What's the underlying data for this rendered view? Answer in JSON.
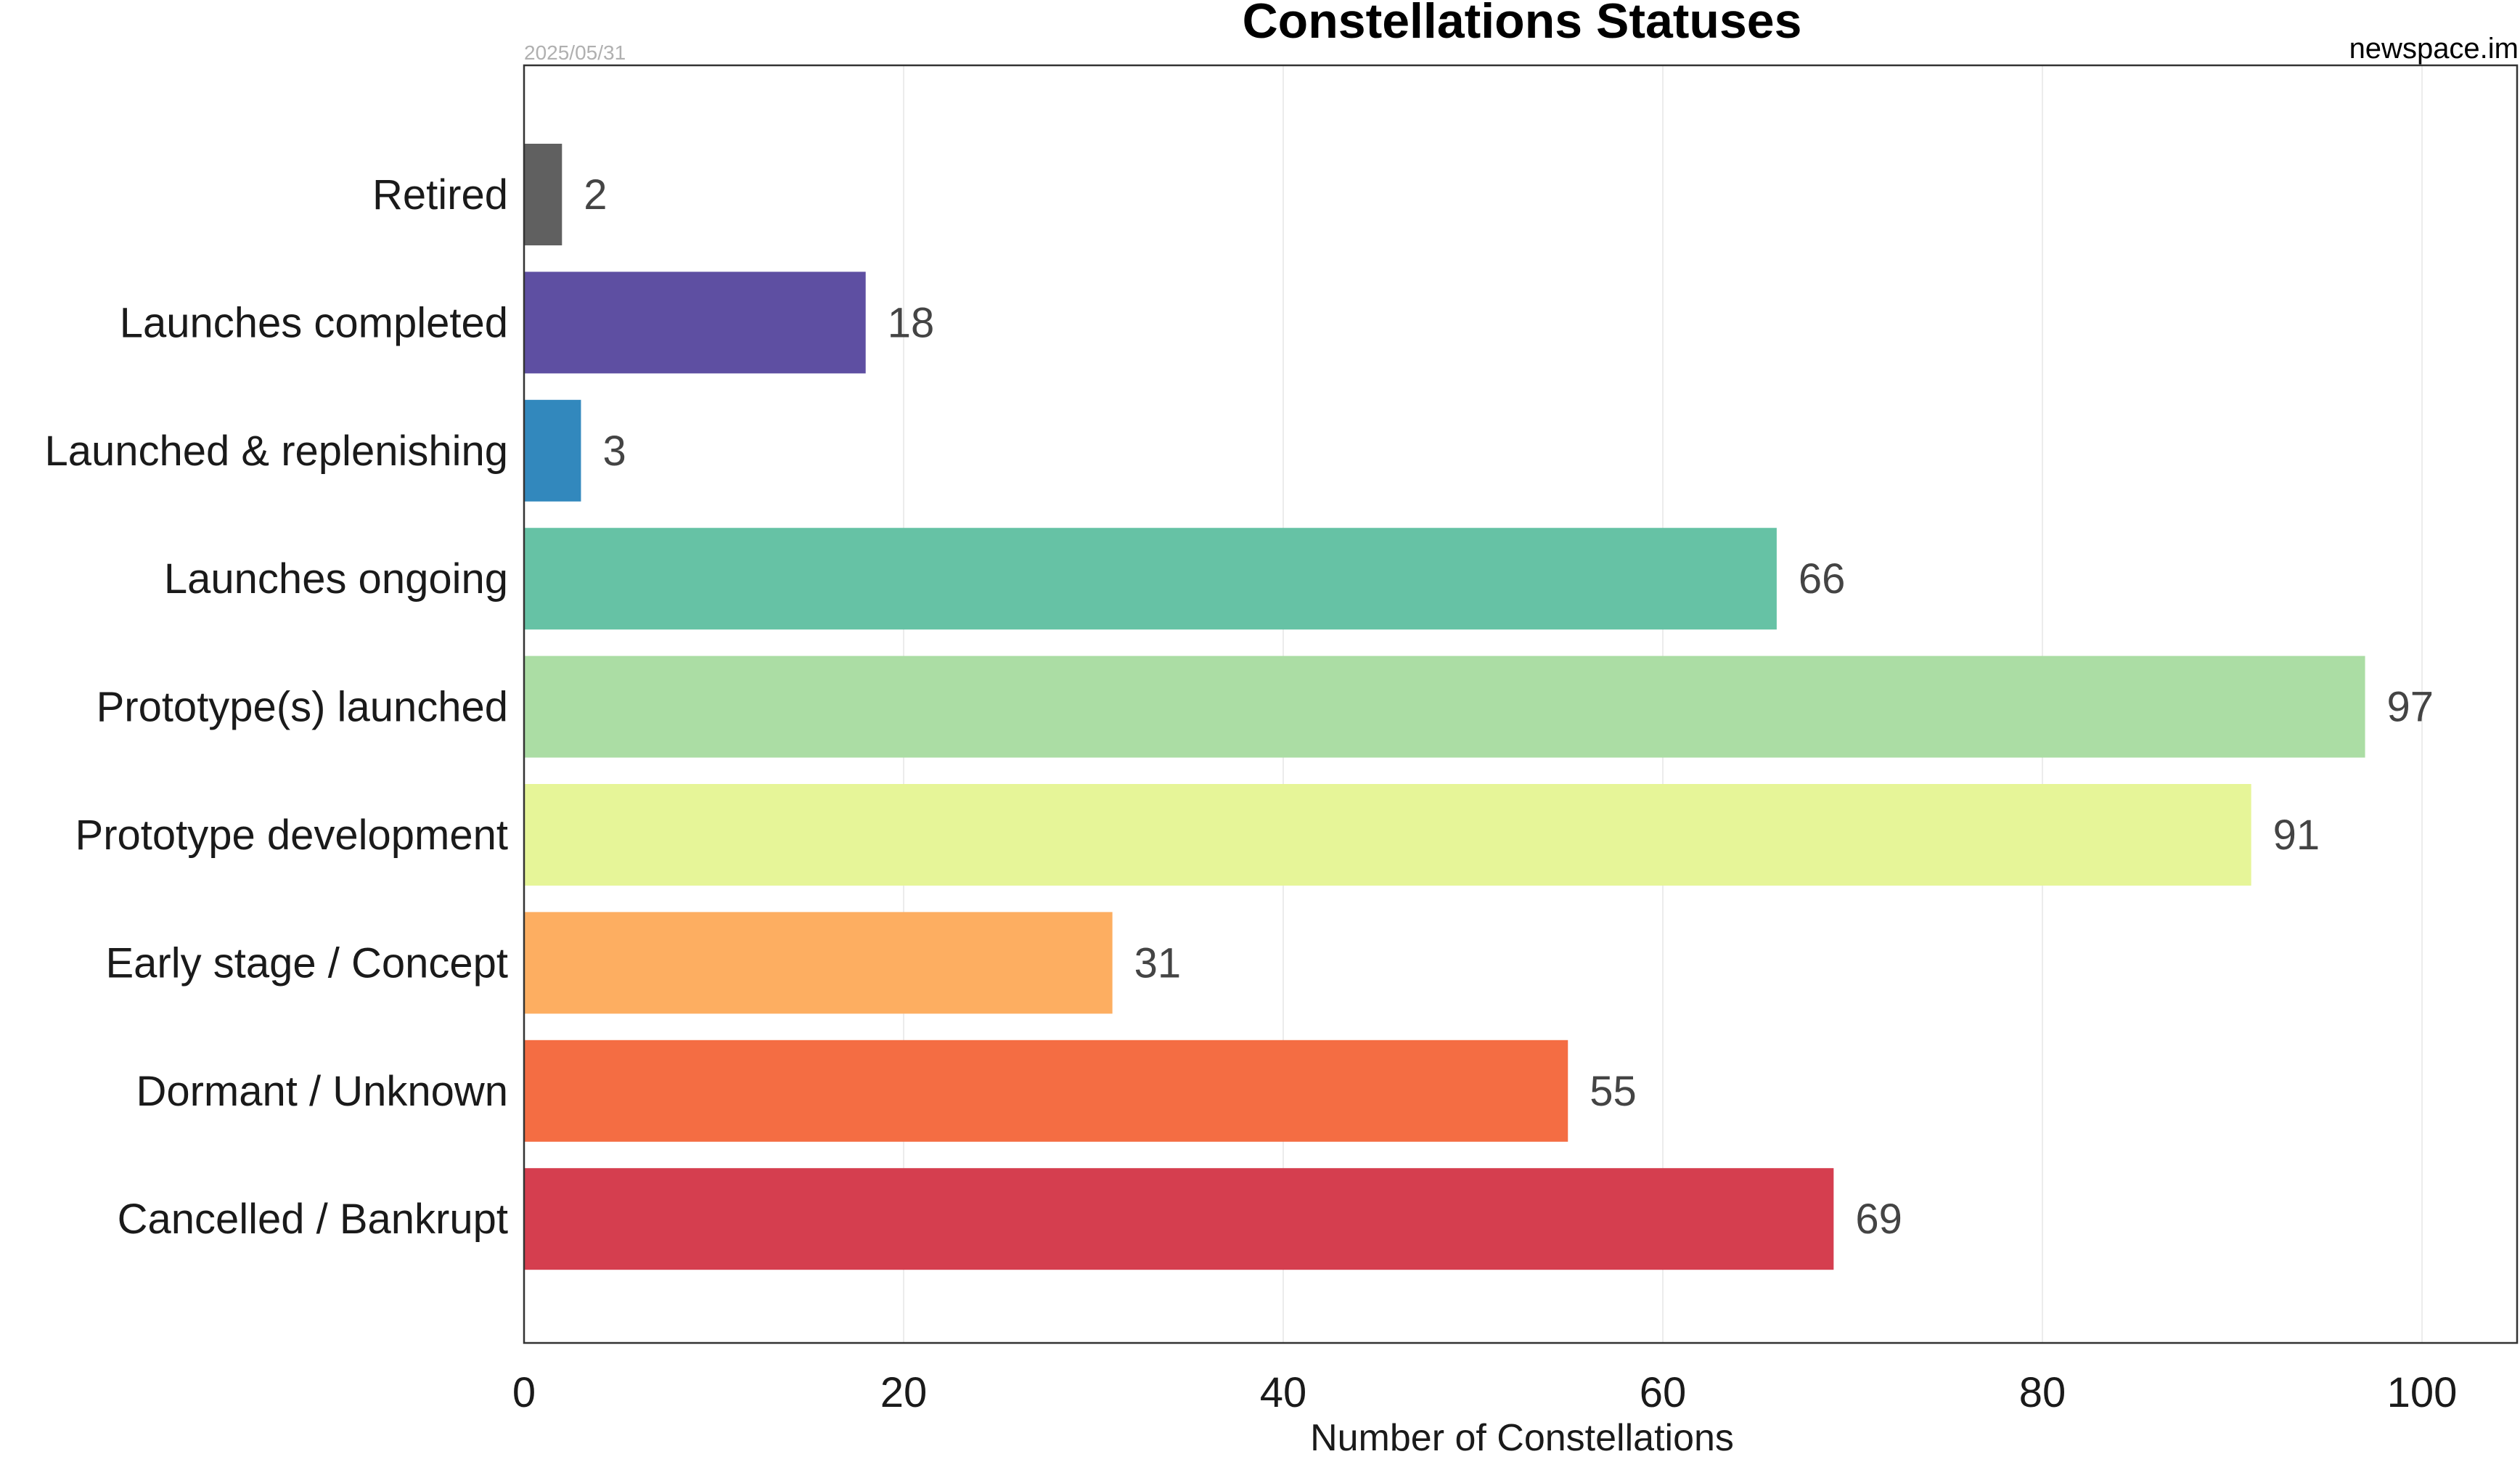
{
  "chart_data": {
    "type": "bar",
    "orientation": "horizontal",
    "title": "Constellations Statuses",
    "date": "2025/05/31",
    "source": "newspace.im",
    "xlabel": "Number of Constellations",
    "ylabel": "",
    "xlim": [
      0,
      105
    ],
    "xticks": [
      0,
      20,
      40,
      60,
      80,
      100
    ],
    "xtick_labels": [
      "0",
      "20",
      "40",
      "60",
      "80",
      "100"
    ],
    "grid": "vertical",
    "categories": [
      "Retired",
      "Launches completed",
      "Launched & replenishing",
      "Launches ongoing",
      "Prototype(s) launched",
      "Prototype development",
      "Early stage / Concept",
      "Dormant / Unknown",
      "Cancelled / Bankrupt"
    ],
    "values": [
      2,
      18,
      3,
      66,
      97,
      91,
      31,
      55,
      69
    ],
    "value_labels": [
      "2",
      "18",
      "3",
      "66",
      "97",
      "91",
      "31",
      "55",
      "69"
    ],
    "colors": [
      "#606060",
      "#5e4fa2",
      "#3288bd",
      "#66c2a5",
      "#abdda4",
      "#e6f598",
      "#fdae61",
      "#f46d43",
      "#d53e4f"
    ]
  }
}
